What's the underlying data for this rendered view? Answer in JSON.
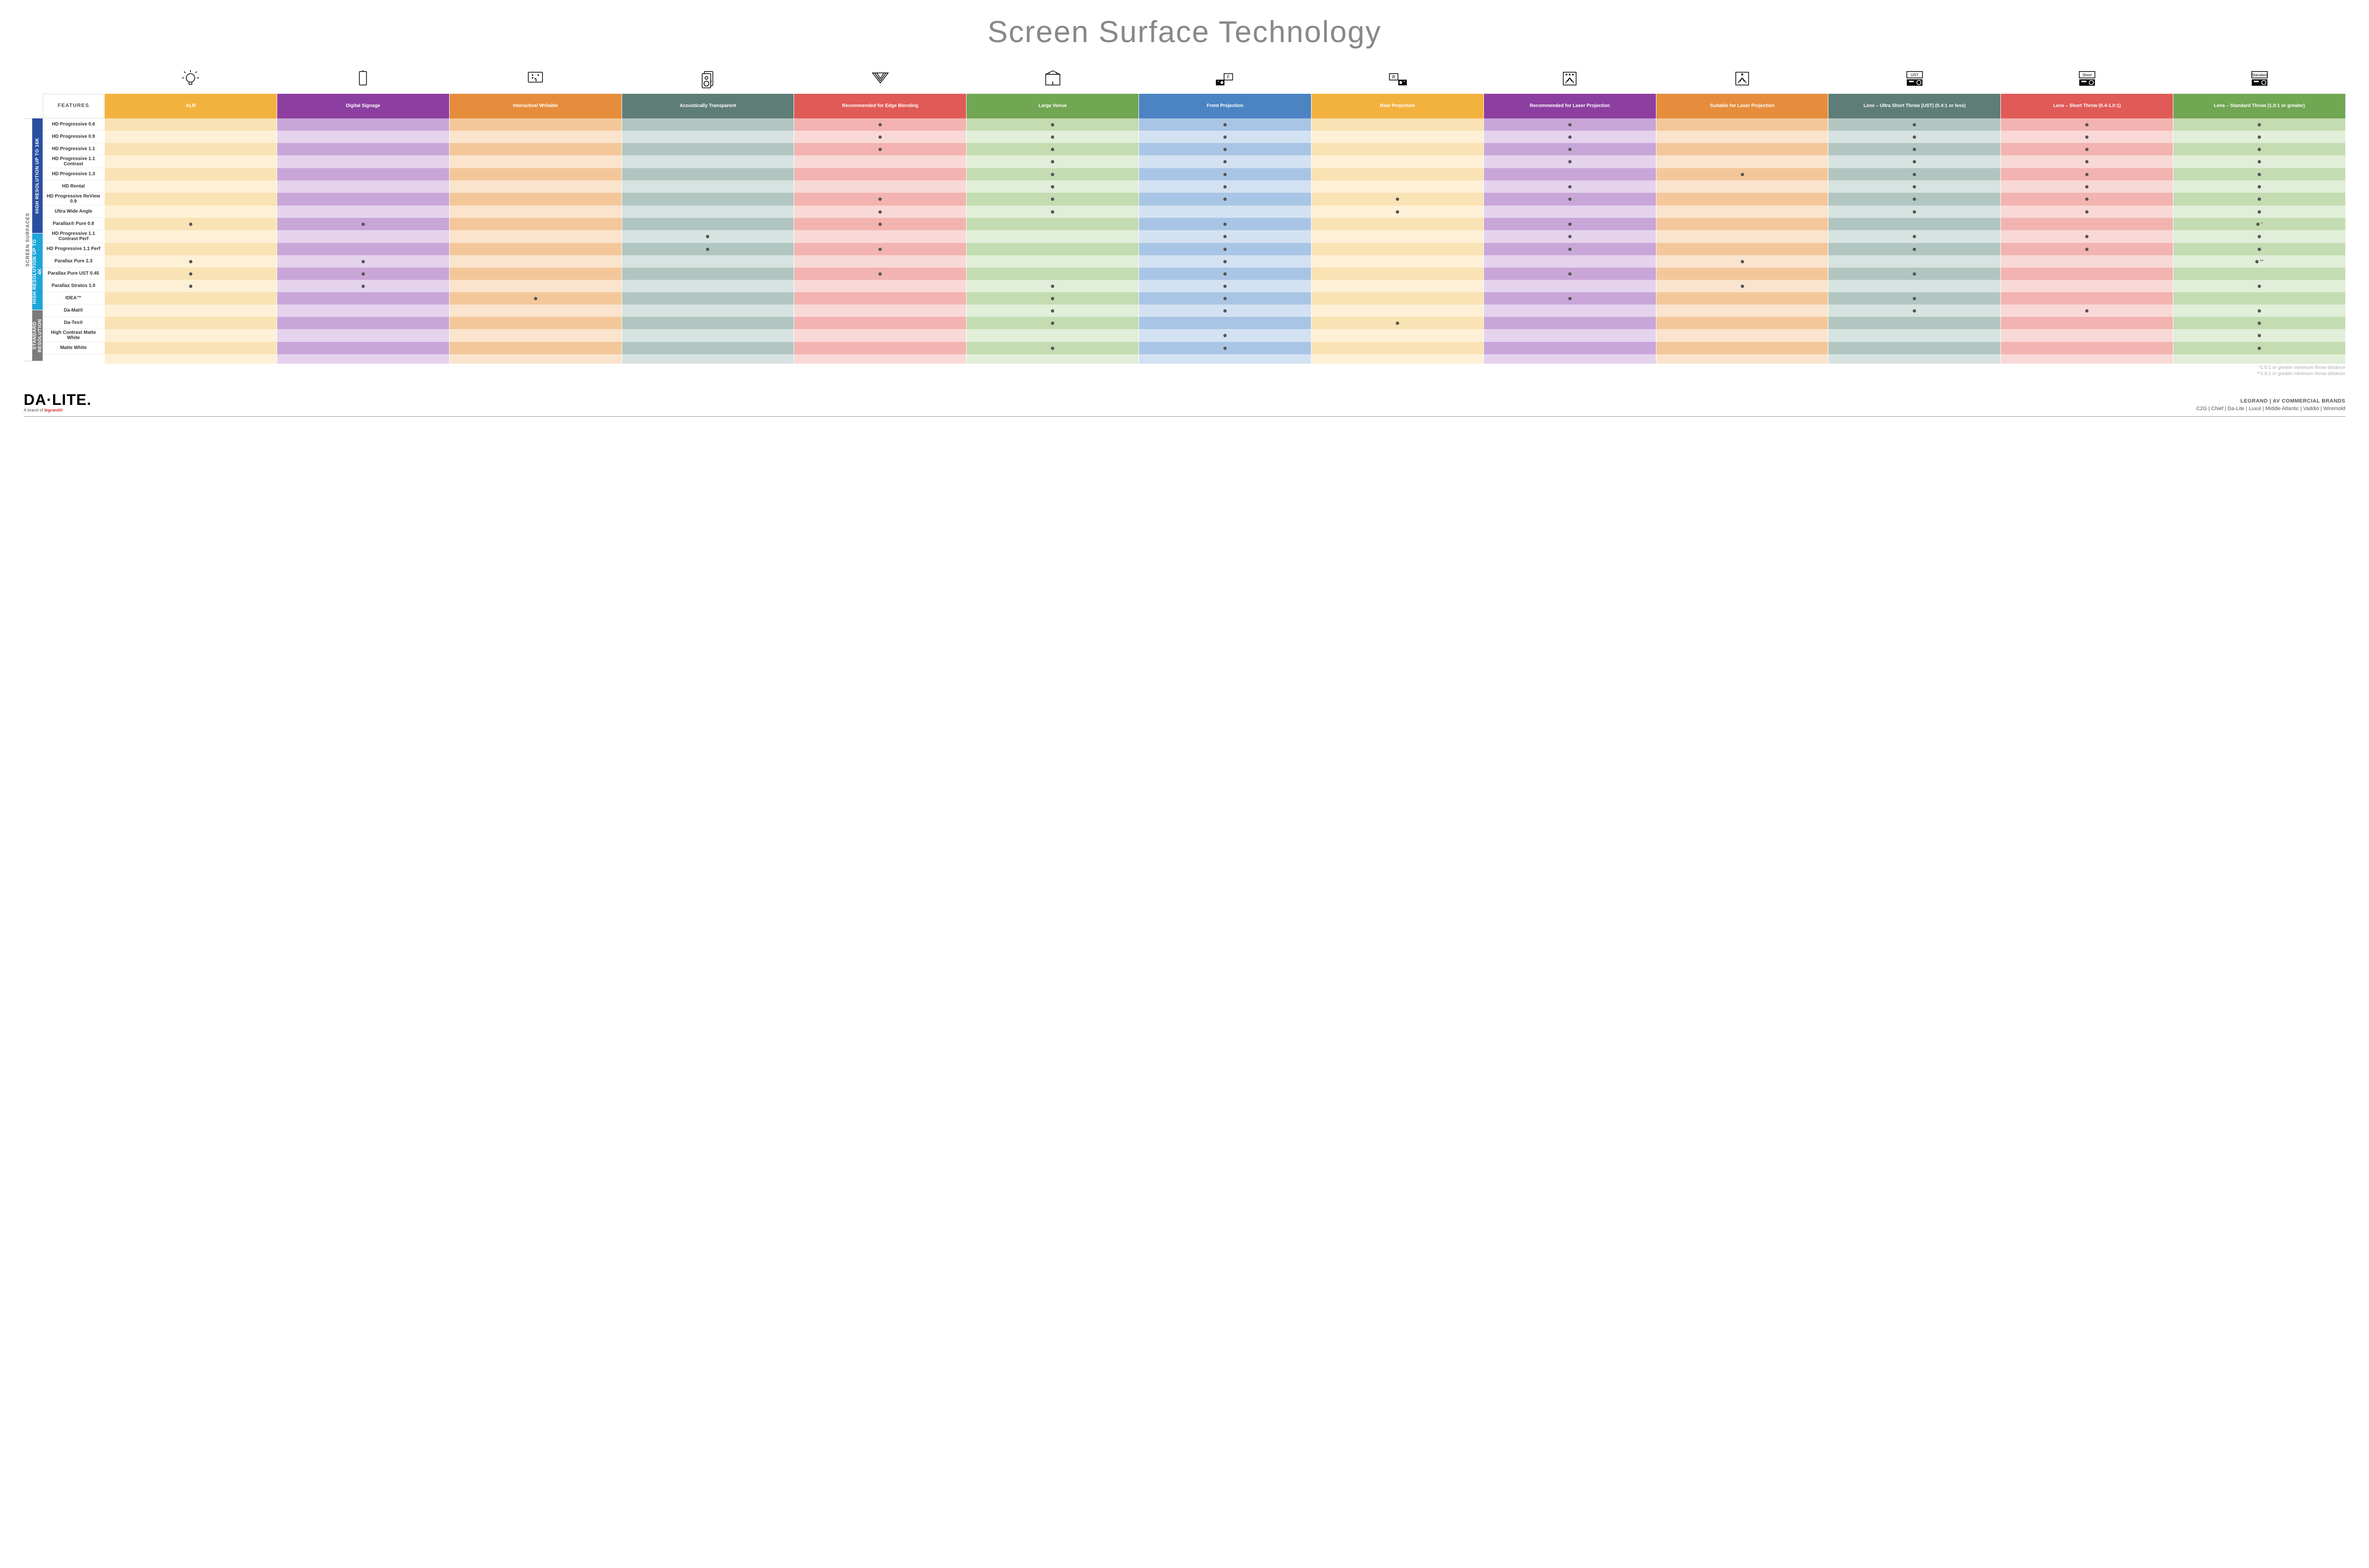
{
  "title": "Screen Surface Technology",
  "features_label": "FEATURES",
  "side_outer_label": "SCREEN SURFACES",
  "columns": [
    {
      "key": "alr",
      "label": "ALR",
      "color": "#f3b23e",
      "alt": "#f9e2b3",
      "base": "#fdf0d6"
    },
    {
      "key": "signage",
      "label": "Digital Signage",
      "color": "#8c3fa0",
      "alt": "#c9a6d8",
      "base": "#e5d3ee"
    },
    {
      "key": "interact",
      "label": "Interactive/ Writable",
      "color": "#e58d3c",
      "alt": "#f4c79a",
      "base": "#fae4cd"
    },
    {
      "key": "acoustic",
      "label": "Acoustically Transparent",
      "color": "#5f7d77",
      "alt": "#b2c6c1",
      "base": "#d7e3e0"
    },
    {
      "key": "edge",
      "label": "Recommended for Edge Blending",
      "color": "#e05a57",
      "alt": "#f3b3b0",
      "base": "#f9d9d7"
    },
    {
      "key": "large",
      "label": "Large Venue",
      "color": "#71a653",
      "alt": "#c3dcb1",
      "base": "#e1eed8"
    },
    {
      "key": "front",
      "label": "Front Projection",
      "color": "#4b83c3",
      "alt": "#a9c5e5",
      "base": "#d3e2f2"
    },
    {
      "key": "rear",
      "label": "Rear Projection",
      "color": "#f3b23e",
      "alt": "#f9e2b3",
      "base": "#fdf0d6"
    },
    {
      "key": "rec_lsr",
      "label": "Recommended for Laser Projection",
      "color": "#8c3fa0",
      "alt": "#c9a6d8",
      "base": "#e5d3ee"
    },
    {
      "key": "suit_lsr",
      "label": "Suitable for Laser Projection",
      "color": "#e58d3c",
      "alt": "#f4c79a",
      "base": "#fae4cd"
    },
    {
      "key": "ust",
      "label": "Lens – Ultra Short Throw (UST) (0.4:1 or less)",
      "color": "#5f7d77",
      "alt": "#b2c6c1",
      "base": "#d7e3e0"
    },
    {
      "key": "short",
      "label": "Lens – Short Throw (0.4-1.0:1)",
      "color": "#e05a57",
      "alt": "#f3b3b0",
      "base": "#f9d9d7"
    },
    {
      "key": "std",
      "label": "Lens – Standard Throw (1.0:1 or greater)",
      "color": "#71a653",
      "alt": "#c3dcb1",
      "base": "#e1eed8"
    }
  ],
  "groups": [
    {
      "key": "hr16k",
      "label": "HIGH RESOLUTION UP TO 16K",
      "color": "#2b4ea0",
      "rows": [
        {
          "label": "HD Progressive 0.6",
          "cells": {
            "edge": "•",
            "large": "•",
            "front": "•",
            "rec_lsr": "•",
            "ust": "•",
            "short": "•",
            "std": "•"
          }
        },
        {
          "label": "HD Progressive 0.9",
          "cells": {
            "edge": "•",
            "large": "•",
            "front": "•",
            "rec_lsr": "•",
            "ust": "•",
            "short": "•",
            "std": "•"
          }
        },
        {
          "label": "HD Progressive 1.1",
          "cells": {
            "edge": "•",
            "large": "•",
            "front": "•",
            "rec_lsr": "•",
            "ust": "•",
            "short": "•",
            "std": "•"
          }
        },
        {
          "label": "HD Progressive 1.1 Contrast",
          "cells": {
            "large": "•",
            "front": "•",
            "rec_lsr": "•",
            "ust": "•",
            "short": "•",
            "std": "•"
          }
        },
        {
          "label": "HD Progressive 1.3",
          "cells": {
            "large": "•",
            "front": "•",
            "suit_lsr": "•",
            "ust": "•",
            "short": "•",
            "std": "•"
          }
        },
        {
          "label": "HD Rental",
          "cells": {
            "large": "•",
            "front": "•",
            "rec_lsr": "•",
            "ust": "•",
            "short": "•",
            "std": "•"
          }
        },
        {
          "label": "HD Progressive ReView 0.9",
          "cells": {
            "edge": "•",
            "large": "•",
            "front": "•",
            "rear": "•",
            "rec_lsr": "•",
            "ust": "•",
            "short": "•",
            "std": "•"
          }
        },
        {
          "label": "Ultra Wide Angle",
          "cells": {
            "edge": "•",
            "large": "•",
            "rear": "•",
            "ust": "•",
            "short": "•",
            "std": "•"
          }
        },
        {
          "label": "Parallax® Pure 0.8",
          "cells": {
            "alr": "•",
            "signage": "•",
            "edge": "•",
            "front": "•",
            "rec_lsr": "•",
            "std": "•"
          },
          "suffix": "*"
        }
      ]
    },
    {
      "key": "hr4k",
      "label": "HIGH RESOLUTION UP TO 4K",
      "color": "#1fa6d8",
      "rows": [
        {
          "label": "HD Progressive 1.1 Contrast Perf",
          "cells": {
            "acoustic": "•",
            "front": "•",
            "rec_lsr": "•",
            "ust": "•",
            "short": "•",
            "std": "•"
          }
        },
        {
          "label": "HD Progressive 1.1 Perf",
          "cells": {
            "acoustic": "•",
            "edge": "•",
            "front": "•",
            "rec_lsr": "•",
            "ust": "•",
            "short": "•",
            "std": "•"
          }
        },
        {
          "label": "Parallax Pure 2.3",
          "cells": {
            "alr": "•",
            "signage": "•",
            "front": "•",
            "suit_lsr": "•",
            "std": "•"
          },
          "suffix": "**"
        },
        {
          "label": "Parallax Pure UST 0.45",
          "cells": {
            "alr": "•",
            "signage": "•",
            "edge": "•",
            "front": "•",
            "rec_lsr": "•",
            "ust": "•"
          }
        },
        {
          "label": "Parallax Stratos 1.0",
          "cells": {
            "alr": "•",
            "signage": "•",
            "large": "•",
            "front": "•",
            "suit_lsr": "•",
            "std": "•"
          }
        },
        {
          "label": "IDEA™",
          "cells": {
            "interact": "•",
            "large": "•",
            "front": "•",
            "rec_lsr": "•",
            "ust": "•"
          }
        }
      ]
    },
    {
      "key": "stdres",
      "label": "STANDARD RESOLUTION",
      "color": "#7b7b7b",
      "rows": [
        {
          "label": "Da-Mat®",
          "cells": {
            "large": "•",
            "front": "•",
            "ust": "•",
            "short": "•",
            "std": "•"
          }
        },
        {
          "label": "Da-Tex®",
          "cells": {
            "large": "•",
            "rear": "•",
            "std": "•"
          }
        },
        {
          "label": "High Contrast Matte White",
          "cells": {
            "front": "•",
            "std": "•"
          }
        },
        {
          "label": "Matte White",
          "cells": {
            "large": "•",
            "front": "•",
            "std": "•"
          }
        }
      ]
    }
  ],
  "footnotes": [
    "*1.5:1 or greater minimum throw distance",
    "**1.8:1 or greater minimum throw distance"
  ],
  "logo_main": "DA·LITE.",
  "logo_sub_prefix": "A brand of ",
  "logo_sub_brand": "legrand®",
  "brands_top": "LEGRAND | AV COMMERCIAL BRANDS",
  "brands_list": "C2G  |  Chief  |  Da-Lite  |  Luxul  |  Middle Atlantic  |  Vaddio  |  Wiremold",
  "icons": {
    "alr": "bulb",
    "signage": "tablet",
    "interact": "touch",
    "acoustic": "speaker",
    "edge": "blend",
    "large": "venue",
    "front": "front",
    "rear": "rear",
    "rec_lsr": "laser3",
    "suit_lsr": "laser1",
    "ust": "ust",
    "short": "short",
    "std": "standard"
  }
}
